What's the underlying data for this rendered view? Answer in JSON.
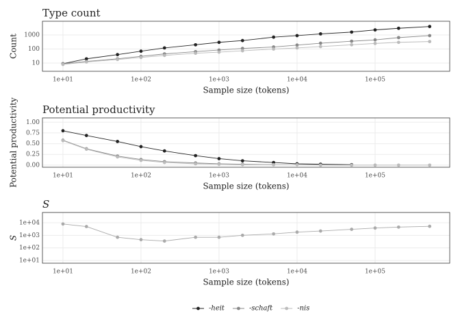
{
  "chart_data": [
    {
      "type": "line",
      "title": "Type count",
      "xlabel": "Sample size (tokens)",
      "ylabel": "Count",
      "xscale": "log",
      "yscale": "log",
      "grid": true,
      "x": [
        10,
        20,
        50,
        100,
        200,
        500,
        1000,
        2000,
        5000,
        10000,
        20000,
        50000,
        100000,
        200000,
        500000
      ],
      "xlim": [
        5.46,
        904000
      ],
      "xticks": [
        {
          "value": 10,
          "label": "1e+01"
        },
        {
          "value": 100,
          "label": "1e+02"
        },
        {
          "value": 1000,
          "label": "1e+03"
        },
        {
          "value": 10000,
          "label": "1e+04"
        },
        {
          "value": 100000,
          "label": "1e+05"
        }
      ],
      "ylim": [
        2.6,
        9500
      ],
      "yticks": [
        10,
        100,
        1000
      ],
      "series": [
        {
          "name": "-heit",
          "color": "#222222",
          "values": [
            9,
            20,
            40,
            70,
            120,
            200,
            300,
            400,
            700,
            900,
            1200,
            1600,
            2300,
            3000,
            4000
          ]
        },
        {
          "name": "-schaft",
          "color": "#888888",
          "values": [
            9,
            13,
            20,
            30,
            45,
            65,
            85,
            110,
            140,
            190,
            260,
            360,
            450,
            650,
            900
          ]
        },
        {
          "name": "-nis",
          "color": "#bbbbbb",
          "values": [
            8,
            12,
            18,
            25,
            35,
            50,
            60,
            75,
            100,
            120,
            150,
            200,
            250,
            300,
            340
          ]
        }
      ]
    },
    {
      "type": "line",
      "title": "Potential productivity",
      "xlabel": "Sample size (tokens)",
      "ylabel": "Potential productivity",
      "xscale": "log",
      "grid": true,
      "x": [
        10,
        20,
        50,
        100,
        200,
        500,
        1000,
        2000,
        5000,
        10000,
        20000,
        50000,
        100000,
        200000,
        500000
      ],
      "xlim": [
        5.46,
        904000
      ],
      "xticks": [
        {
          "value": 10,
          "label": "1e+01"
        },
        {
          "value": 100,
          "label": "1e+02"
        },
        {
          "value": 1000,
          "label": "1e+03"
        },
        {
          "value": 10000,
          "label": "1e+04"
        },
        {
          "value": 100000,
          "label": "1e+05"
        }
      ],
      "ylim": [
        -0.05,
        1.1
      ],
      "yticks": [
        {
          "value": 0,
          "label": "0.00"
        },
        {
          "value": 0.25,
          "label": "0.25"
        },
        {
          "value": 0.5,
          "label": "0.50"
        },
        {
          "value": 0.75,
          "label": "0.75"
        },
        {
          "value": 1,
          "label": "1.00"
        }
      ],
      "series": [
        {
          "name": "-heit",
          "color": "#222222",
          "values": [
            0.8,
            0.69,
            0.55,
            0.43,
            0.33,
            0.22,
            0.15,
            0.1,
            0.06,
            0.03,
            0.02,
            0.01,
            null,
            null,
            null
          ]
        },
        {
          "name": "-schaft",
          "color": "#888888",
          "values": [
            0.58,
            0.38,
            0.21,
            0.13,
            0.08,
            0.05,
            0.03,
            0.02,
            0.01,
            null,
            null,
            null,
            null,
            null,
            null
          ]
        },
        {
          "name": "-nis",
          "color": "#bbbbbb",
          "values": [
            0.57,
            0.37,
            0.19,
            0.11,
            0.06,
            0.03,
            0.02,
            0.01,
            0.01,
            0.01,
            0,
            0,
            0,
            0,
            0
          ]
        }
      ]
    },
    {
      "type": "line",
      "title": "S",
      "xlabel": "Sample size (tokens)",
      "ylabel": "S",
      "xscale": "log",
      "yscale": "log",
      "grid": true,
      "x": [
        10,
        20,
        50,
        100,
        200,
        500,
        1000,
        2000,
        5000,
        10000,
        20000,
        50000,
        100000,
        200000,
        500000
      ],
      "xlim": [
        5.46,
        904000
      ],
      "xticks": [
        {
          "value": 10,
          "label": "1e+01"
        },
        {
          "value": 100,
          "label": "1e+02"
        },
        {
          "value": 1000,
          "label": "1e+03"
        },
        {
          "value": 10000,
          "label": "1e+04"
        },
        {
          "value": 100000,
          "label": "1e+05"
        }
      ],
      "ylim": [
        6,
        66000
      ],
      "yticks": [
        {
          "value": 10,
          "label": "1e+01"
        },
        {
          "value": 100,
          "label": "1e+02"
        },
        {
          "value": 1000,
          "label": "1e+03"
        },
        {
          "value": 10000,
          "label": "1e+04"
        }
      ],
      "color": "#aaaaaa",
      "values": [
        8000,
        5000,
        700,
        450,
        350,
        700,
        700,
        1000,
        1300,
        1800,
        2200,
        3000,
        3800,
        4500,
        5200
      ]
    }
  ]
}
